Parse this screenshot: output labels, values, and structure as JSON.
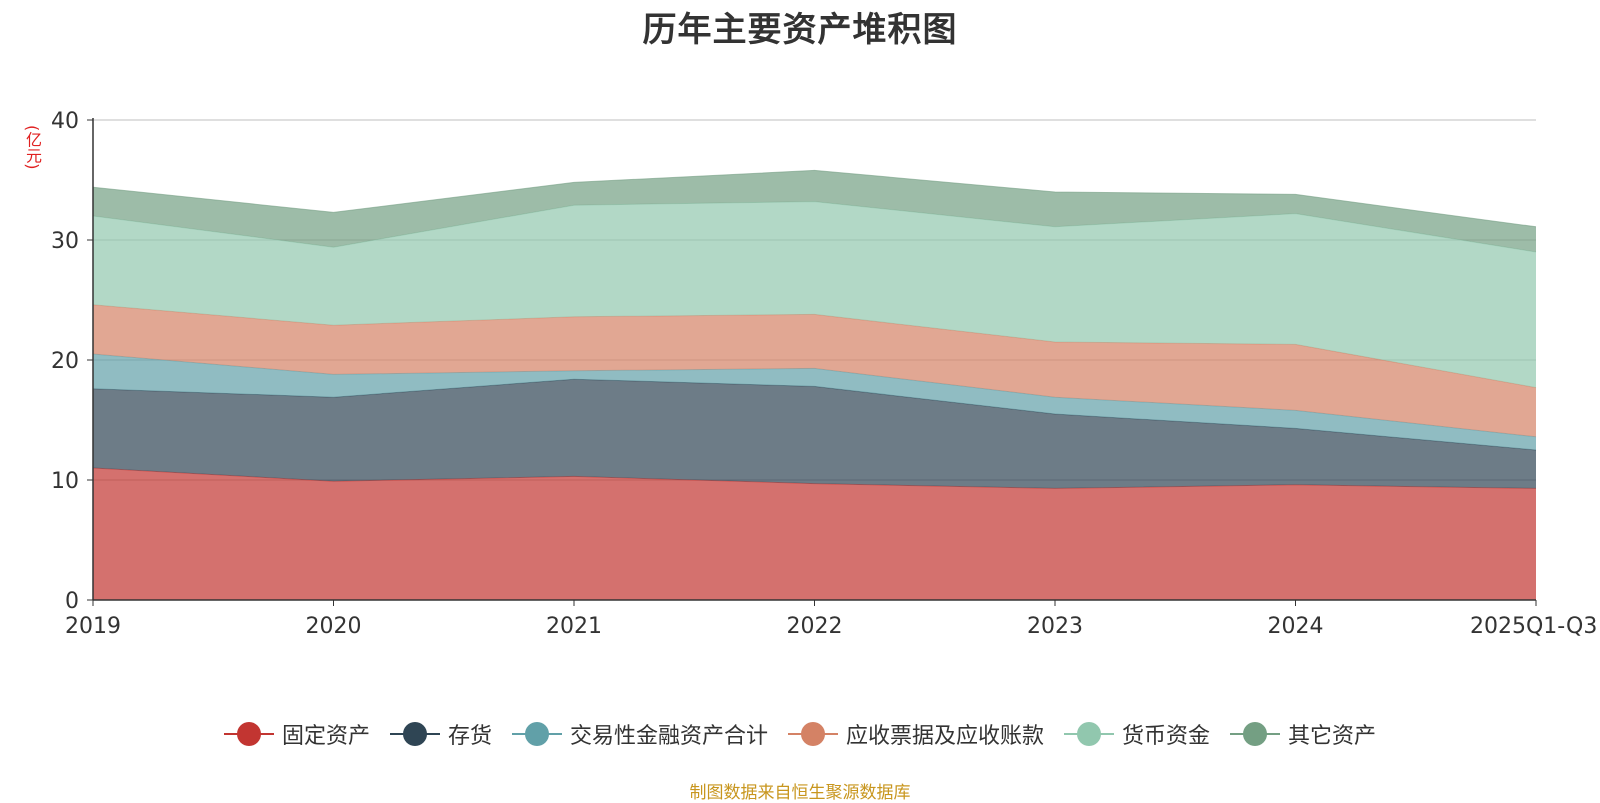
{
  "chart_data": {
    "type": "area",
    "stacked": true,
    "title": "历年主要资产堆积图",
    "ylabel": "(亿元)",
    "xlabel": "",
    "categories": [
      "2019",
      "2020",
      "2021",
      "2022",
      "2023",
      "2024",
      "2025Q1-Q3"
    ],
    "ylim": [
      0,
      40
    ],
    "yticks": [
      0,
      10,
      20,
      30,
      40
    ],
    "series": [
      {
        "name": "固定资产",
        "color": "#c23531",
        "values": [
          11.0,
          9.9,
          10.3,
          9.7,
          9.3,
          9.6,
          9.3
        ]
      },
      {
        "name": "存货",
        "color": "#2f4554",
        "values": [
          6.6,
          7.0,
          8.1,
          8.1,
          6.2,
          4.7,
          3.2
        ]
      },
      {
        "name": "交易性金融资产合计",
        "color": "#61a0a8",
        "values": [
          2.9,
          1.9,
          0.7,
          1.5,
          1.4,
          1.5,
          1.1
        ]
      },
      {
        "name": "应收票据及应收账款",
        "color": "#d48265",
        "values": [
          4.1,
          4.1,
          4.5,
          4.5,
          4.6,
          5.5,
          4.1
        ]
      },
      {
        "name": "货币资金",
        "color": "#91c7ae",
        "values": [
          7.4,
          6.5,
          9.3,
          9.4,
          9.6,
          10.9,
          11.3
        ]
      },
      {
        "name": "其它资产",
        "color": "#749f83",
        "values": [
          2.4,
          2.9,
          1.9,
          2.6,
          2.9,
          1.6,
          2.1
        ]
      }
    ]
  },
  "source_text": "制图数据来自恒生聚源数据库"
}
